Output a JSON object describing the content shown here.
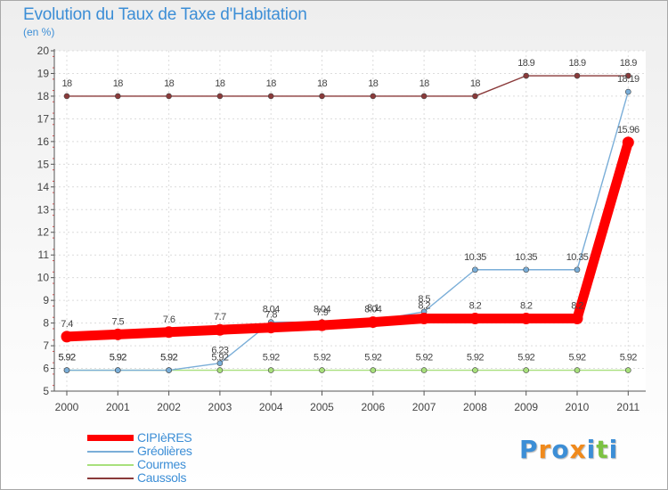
{
  "chart_data": {
    "type": "line",
    "title": "Evolution du Taux de Taxe d'Habitation",
    "subtitle": "(en %)",
    "xlabel": "",
    "ylabel": "",
    "ylim": [
      5,
      20
    ],
    "categories": [
      "2000",
      "2001",
      "2002",
      "2003",
      "2004",
      "2005",
      "2006",
      "2007",
      "2008",
      "2009",
      "2010",
      "2011"
    ],
    "yticks": [
      "5",
      "6",
      "7",
      "8",
      "9",
      "10",
      "11",
      "12",
      "13",
      "14",
      "15",
      "16",
      "17",
      "18",
      "19",
      "20"
    ],
    "legend_position": "bottom-left",
    "series": [
      {
        "name": "CIPIèRES",
        "color": "#ff0000",
        "values": [
          7.4,
          7.5,
          7.6,
          7.7,
          7.8,
          7.9,
          8.04,
          8.2,
          8.2,
          8.2,
          8.2,
          15.96
        ],
        "labels": [
          "7.4",
          "7.5",
          "7.6",
          "7.7",
          "7.8",
          "7.9",
          "8.04",
          "8.2",
          "8.2",
          "8.2",
          "8.2",
          "15.96"
        ]
      },
      {
        "name": "Gréolières",
        "color": "#7aaed8",
        "values": [
          5.92,
          5.92,
          5.92,
          6.23,
          8.04,
          8.04,
          8.1,
          8.5,
          10.35,
          10.35,
          10.35,
          18.19
        ],
        "labels": [
          "5.92",
          "5.92",
          "5.92",
          "6.23",
          "8.04",
          "8.04",
          "8.1",
          "8.5",
          "10.35",
          "10.35",
          "10.35",
          "18.19"
        ]
      },
      {
        "name": "Courmes",
        "color": "#a8e07c",
        "values": [
          5.92,
          5.92,
          5.92,
          5.92,
          5.92,
          5.92,
          5.92,
          5.92,
          5.92,
          5.92,
          5.92,
          5.92
        ],
        "labels": [
          "5.92",
          "5.92",
          "5.92",
          "5.92",
          "5.92",
          "5.92",
          "5.92",
          "5.92",
          "5.92",
          "5.92",
          "5.92",
          "5.92"
        ]
      },
      {
        "name": "Caussols",
        "color": "#8a3a3a",
        "values": [
          18,
          18,
          18,
          18,
          18,
          18,
          18,
          18,
          18,
          18.9,
          18.9,
          18.9
        ],
        "labels": [
          "18",
          "18",
          "18",
          "18",
          "18",
          "18",
          "18",
          "18",
          "18",
          "18.9",
          "18.9",
          "18.9"
        ]
      }
    ]
  },
  "logo": {
    "text": "Proxiti",
    "colors": [
      "#3c8ed6",
      "#f08a1c",
      "#3c8ed6",
      "#f08a1c",
      "#3c8ed6",
      "#7cc242",
      "#3c8ed6"
    ]
  }
}
